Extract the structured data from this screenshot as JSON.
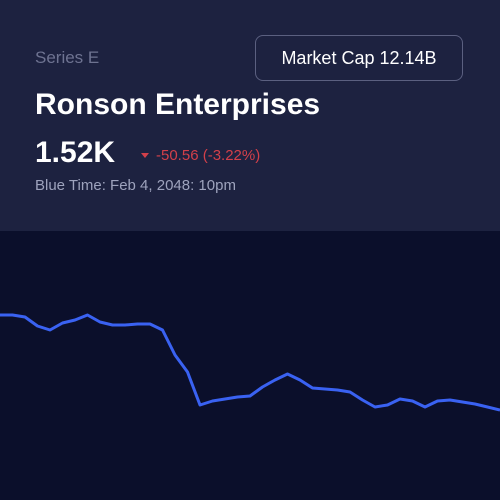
{
  "header": {
    "series": "Series E",
    "market_cap_label": "Market Cap",
    "market_cap_value": "12.14B",
    "title": "Ronson Enterprises",
    "price": "1.52K",
    "change": "-50.56 (-3.22%)",
    "timestamp": "Blue Time: Feb 4, 2048: 10pm"
  },
  "chart_data": {
    "type": "line",
    "color": "#3a62f2",
    "values": [
      185,
      185,
      183,
      174,
      170,
      177,
      180,
      185,
      178,
      175,
      175,
      176,
      176,
      170,
      145,
      128,
      95,
      99,
      101,
      103,
      104,
      113,
      120,
      126,
      120,
      112,
      111,
      110,
      108,
      100,
      93,
      95,
      101,
      99,
      93,
      99,
      100,
      98,
      96,
      93,
      90
    ]
  }
}
